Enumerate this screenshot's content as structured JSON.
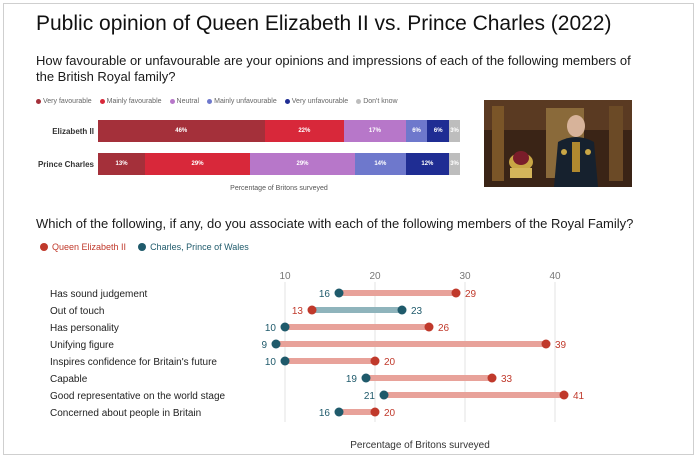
{
  "title": "Public opinion of Queen Elizabeth II vs. Prince Charles (2022)",
  "question1": "How favourable or unfavourable are your opinions and impressions of each of the following members of the British Royal family?",
  "question2": "Which of the following, if any, do you associate with each of the following members of the Royal Family?",
  "photo_icon": "portrait-photo",
  "chart_data": [
    {
      "type": "bar",
      "stacked": true,
      "orientation": "horizontal",
      "categories": [
        "Elizabeth II",
        "Prince Charles"
      ],
      "series": [
        {
          "name": "Very favourable",
          "color": "#a4303a",
          "values": [
            46,
            13
          ]
        },
        {
          "name": "Mainly favourable",
          "color": "#d8283a",
          "values": [
            22,
            29
          ]
        },
        {
          "name": "Neutral",
          "color": "#b777c9",
          "values": [
            17,
            29
          ]
        },
        {
          "name": "Mainly unfavourable",
          "color": "#6e78cc",
          "values": [
            6,
            14
          ]
        },
        {
          "name": "Very unfavourable",
          "color": "#1f2d93",
          "values": [
            6,
            12
          ]
        },
        {
          "name": "Don't know",
          "color": "#bdbdbd",
          "values": [
            3,
            3
          ]
        }
      ],
      "labels": [
        [
          "46%",
          "22%",
          "17%",
          "6%",
          "6%",
          "3%"
        ],
        [
          "13%",
          "29%",
          "29%",
          "14%",
          "12%",
          "3%"
        ]
      ],
      "xlabel": "Percentage of Britons surveyed",
      "xlim": [
        0,
        100
      ]
    },
    {
      "type": "scatter",
      "style": "dumbbell",
      "categories": [
        "Has sound judgement",
        "Out of touch",
        "Has personality",
        "Unifying figure",
        "Inspires confidence for Britain's future",
        "Capable",
        "Good representative on the world stage",
        "Concerned about people in Britain"
      ],
      "series": [
        {
          "name": "Queen Elizabeth II",
          "color": "#c0392b",
          "values": [
            29,
            13,
            26,
            39,
            20,
            33,
            41,
            20
          ]
        },
        {
          "name": "Charles, Prince of Wales",
          "color": "#1f5a6b",
          "values": [
            16,
            23,
            10,
            9,
            10,
            19,
            21,
            16
          ]
        }
      ],
      "xticks": [
        10,
        20,
        30,
        40
      ],
      "xlim": [
        5,
        45
      ],
      "xlabel": "Percentage of Britons surveyed",
      "grid": true
    }
  ]
}
